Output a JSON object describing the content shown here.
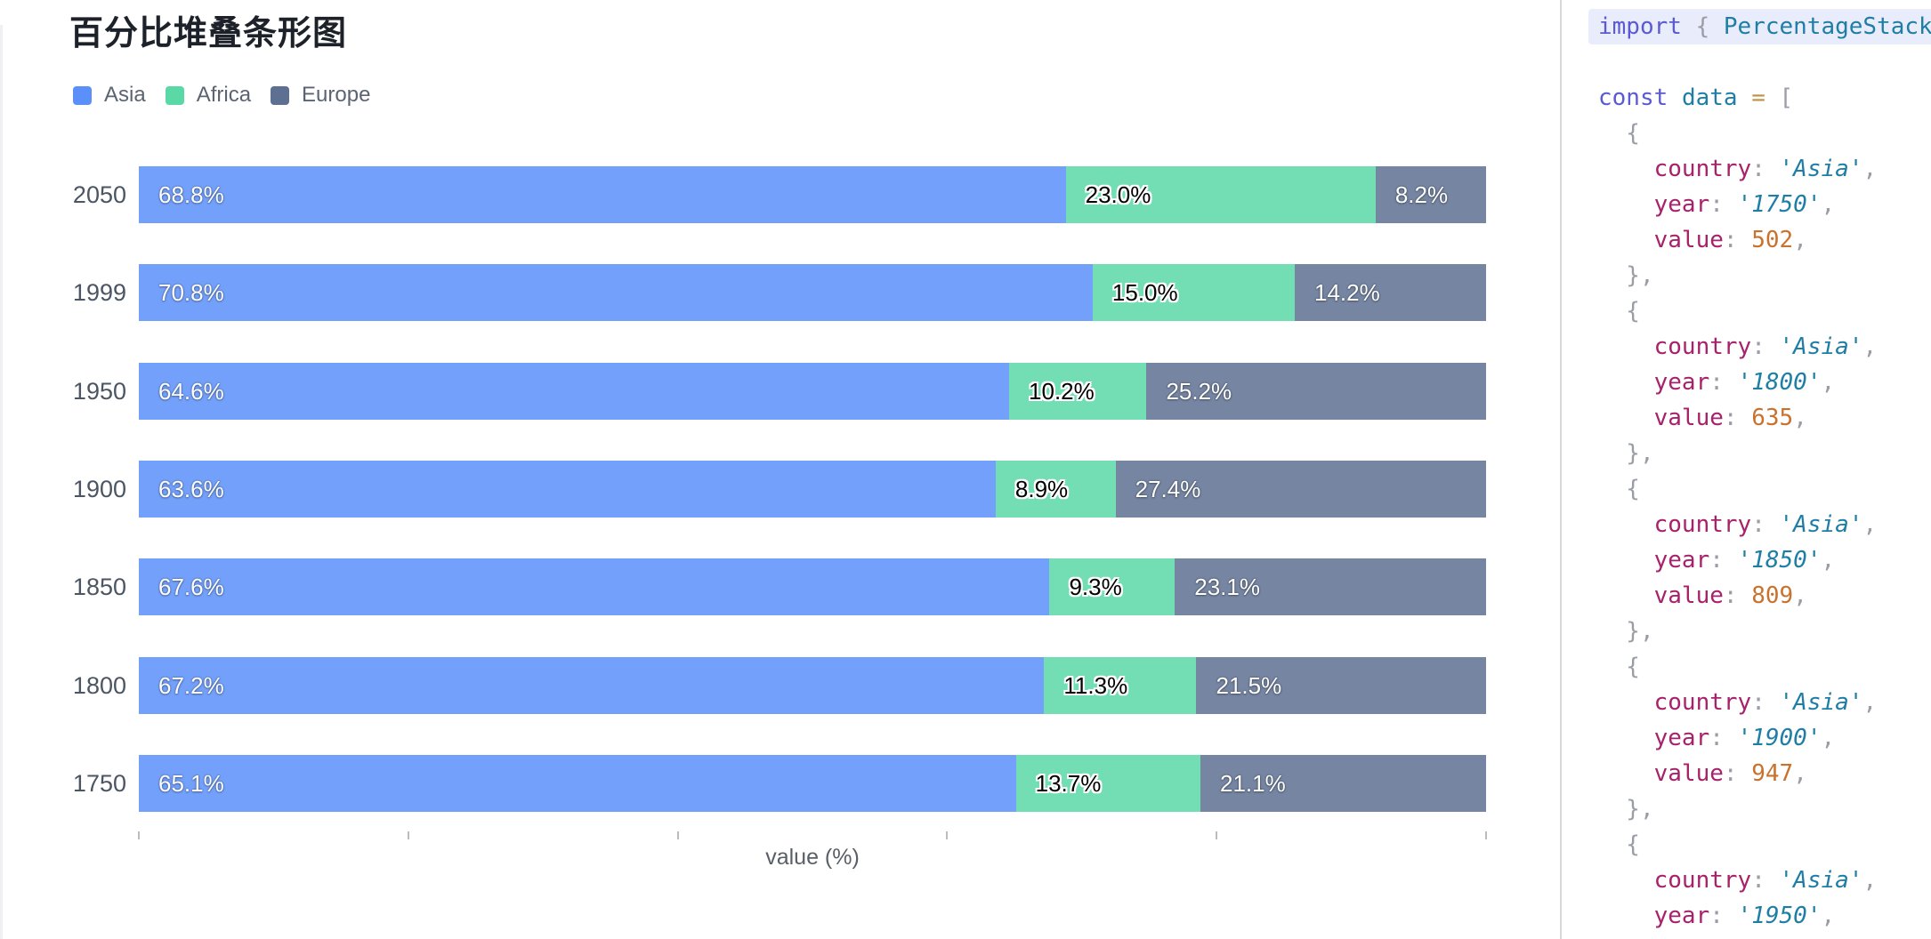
{
  "chart": {
    "title": "百分比堆叠条形图",
    "xlabel": "value (%)",
    "series_meta": [
      {
        "name": "Asia",
        "color": "#5B8FF9",
        "label_style": "light"
      },
      {
        "name": "Africa",
        "color": "#5AD8A6",
        "label_style": "dark"
      },
      {
        "name": "Europe",
        "color": "#5D7092",
        "label_style": "light"
      }
    ],
    "bar_fill_opacity": 0.85
  },
  "chart_data": {
    "type": "bar",
    "orientation": "horizontal",
    "stacked": true,
    "unit": "percent",
    "title": "百分比堆叠条形图",
    "categories": [
      "2050",
      "1999",
      "1950",
      "1900",
      "1850",
      "1800",
      "1750"
    ],
    "series": [
      {
        "name": "Asia",
        "values": [
          68.8,
          70.8,
          64.6,
          63.6,
          67.6,
          67.2,
          65.1
        ]
      },
      {
        "name": "Africa",
        "values": [
          23.0,
          15.0,
          10.2,
          8.9,
          9.3,
          11.3,
          13.7
        ]
      },
      {
        "name": "Europe",
        "values": [
          8.2,
          14.2,
          25.2,
          27.4,
          23.1,
          21.5,
          21.1
        ]
      }
    ],
    "xlabel": "value (%)",
    "xlim": [
      0,
      100
    ],
    "x_ticks_pct": [
      0,
      20,
      40,
      60,
      80,
      100
    ],
    "x_tick_labels_visible": false,
    "legend_position": "top-left",
    "grid": false,
    "colors": {
      "Asia": "#5B8FF9",
      "Africa": "#5AD8A6",
      "Europe": "#5D7092"
    }
  },
  "code_panel": {
    "lines": [
      {
        "hl": true,
        "tokens": [
          {
            "c": "kw",
            "t": "import"
          },
          {
            "c": "pln",
            "t": " "
          },
          {
            "c": "pun",
            "t": "{"
          },
          {
            "c": "pln",
            "t": " "
          },
          {
            "c": "cls",
            "t": "PercentageStack"
          }
        ]
      },
      {
        "hl": false,
        "tokens": []
      },
      {
        "hl": false,
        "tokens": [
          {
            "c": "kw",
            "t": "const"
          },
          {
            "c": "pln",
            "t": " "
          },
          {
            "c": "cls",
            "t": "data"
          },
          {
            "c": "pln",
            "t": " "
          },
          {
            "c": "op",
            "t": "="
          },
          {
            "c": "pln",
            "t": " "
          },
          {
            "c": "pun",
            "t": "["
          }
        ]
      },
      {
        "hl": false,
        "tokens": [
          {
            "c": "pun",
            "t": "  {"
          }
        ]
      },
      {
        "hl": false,
        "tokens": [
          {
            "c": "pln",
            "t": "    "
          },
          {
            "c": "prop",
            "t": "country"
          },
          {
            "c": "pun",
            "t": ":"
          },
          {
            "c": "pln",
            "t": " "
          },
          {
            "c": "str",
            "t": "'Asia'"
          },
          {
            "c": "pun",
            "t": ","
          }
        ]
      },
      {
        "hl": false,
        "tokens": [
          {
            "c": "pln",
            "t": "    "
          },
          {
            "c": "prop",
            "t": "year"
          },
          {
            "c": "pun",
            "t": ":"
          },
          {
            "c": "pln",
            "t": " "
          },
          {
            "c": "str",
            "t": "'1750'"
          },
          {
            "c": "pun",
            "t": ","
          }
        ]
      },
      {
        "hl": false,
        "tokens": [
          {
            "c": "pln",
            "t": "    "
          },
          {
            "c": "prop",
            "t": "value"
          },
          {
            "c": "pun",
            "t": ":"
          },
          {
            "c": "pln",
            "t": " "
          },
          {
            "c": "num",
            "t": "502"
          },
          {
            "c": "pun",
            "t": ","
          }
        ]
      },
      {
        "hl": false,
        "tokens": [
          {
            "c": "pun",
            "t": "  },"
          }
        ]
      },
      {
        "hl": false,
        "tokens": [
          {
            "c": "pun",
            "t": "  {"
          }
        ]
      },
      {
        "hl": false,
        "tokens": [
          {
            "c": "pln",
            "t": "    "
          },
          {
            "c": "prop",
            "t": "country"
          },
          {
            "c": "pun",
            "t": ":"
          },
          {
            "c": "pln",
            "t": " "
          },
          {
            "c": "str",
            "t": "'Asia'"
          },
          {
            "c": "pun",
            "t": ","
          }
        ]
      },
      {
        "hl": false,
        "tokens": [
          {
            "c": "pln",
            "t": "    "
          },
          {
            "c": "prop",
            "t": "year"
          },
          {
            "c": "pun",
            "t": ":"
          },
          {
            "c": "pln",
            "t": " "
          },
          {
            "c": "str",
            "t": "'1800'"
          },
          {
            "c": "pun",
            "t": ","
          }
        ]
      },
      {
        "hl": false,
        "tokens": [
          {
            "c": "pln",
            "t": "    "
          },
          {
            "c": "prop",
            "t": "value"
          },
          {
            "c": "pun",
            "t": ":"
          },
          {
            "c": "pln",
            "t": " "
          },
          {
            "c": "num",
            "t": "635"
          },
          {
            "c": "pun",
            "t": ","
          }
        ]
      },
      {
        "hl": false,
        "tokens": [
          {
            "c": "pun",
            "t": "  },"
          }
        ]
      },
      {
        "hl": false,
        "tokens": [
          {
            "c": "pun",
            "t": "  {"
          }
        ]
      },
      {
        "hl": false,
        "tokens": [
          {
            "c": "pln",
            "t": "    "
          },
          {
            "c": "prop",
            "t": "country"
          },
          {
            "c": "pun",
            "t": ":"
          },
          {
            "c": "pln",
            "t": " "
          },
          {
            "c": "str",
            "t": "'Asia'"
          },
          {
            "c": "pun",
            "t": ","
          }
        ]
      },
      {
        "hl": false,
        "tokens": [
          {
            "c": "pln",
            "t": "    "
          },
          {
            "c": "prop",
            "t": "year"
          },
          {
            "c": "pun",
            "t": ":"
          },
          {
            "c": "pln",
            "t": " "
          },
          {
            "c": "str",
            "t": "'1850'"
          },
          {
            "c": "pun",
            "t": ","
          }
        ]
      },
      {
        "hl": false,
        "tokens": [
          {
            "c": "pln",
            "t": "    "
          },
          {
            "c": "prop",
            "t": "value"
          },
          {
            "c": "pun",
            "t": ":"
          },
          {
            "c": "pln",
            "t": " "
          },
          {
            "c": "num",
            "t": "809"
          },
          {
            "c": "pun",
            "t": ","
          }
        ]
      },
      {
        "hl": false,
        "tokens": [
          {
            "c": "pun",
            "t": "  },"
          }
        ]
      },
      {
        "hl": false,
        "tokens": [
          {
            "c": "pun",
            "t": "  {"
          }
        ]
      },
      {
        "hl": false,
        "tokens": [
          {
            "c": "pln",
            "t": "    "
          },
          {
            "c": "prop",
            "t": "country"
          },
          {
            "c": "pun",
            "t": ":"
          },
          {
            "c": "pln",
            "t": " "
          },
          {
            "c": "str",
            "t": "'Asia'"
          },
          {
            "c": "pun",
            "t": ","
          }
        ]
      },
      {
        "hl": false,
        "tokens": [
          {
            "c": "pln",
            "t": "    "
          },
          {
            "c": "prop",
            "t": "year"
          },
          {
            "c": "pun",
            "t": ":"
          },
          {
            "c": "pln",
            "t": " "
          },
          {
            "c": "str",
            "t": "'1900'"
          },
          {
            "c": "pun",
            "t": ","
          }
        ]
      },
      {
        "hl": false,
        "tokens": [
          {
            "c": "pln",
            "t": "    "
          },
          {
            "c": "prop",
            "t": "value"
          },
          {
            "c": "pun",
            "t": ":"
          },
          {
            "c": "pln",
            "t": " "
          },
          {
            "c": "num",
            "t": "947"
          },
          {
            "c": "pun",
            "t": ","
          }
        ]
      },
      {
        "hl": false,
        "tokens": [
          {
            "c": "pun",
            "t": "  },"
          }
        ]
      },
      {
        "hl": false,
        "tokens": [
          {
            "c": "pun",
            "t": "  {"
          }
        ]
      },
      {
        "hl": false,
        "tokens": [
          {
            "c": "pln",
            "t": "    "
          },
          {
            "c": "prop",
            "t": "country"
          },
          {
            "c": "pun",
            "t": ":"
          },
          {
            "c": "pln",
            "t": " "
          },
          {
            "c": "str",
            "t": "'Asia'"
          },
          {
            "c": "pun",
            "t": ","
          }
        ]
      },
      {
        "hl": false,
        "tokens": [
          {
            "c": "pln",
            "t": "    "
          },
          {
            "c": "prop",
            "t": "year"
          },
          {
            "c": "pun",
            "t": ":"
          },
          {
            "c": "pln",
            "t": " "
          },
          {
            "c": "str",
            "t": "'1950'"
          },
          {
            "c": "pun",
            "t": ","
          }
        ]
      }
    ]
  },
  "layout_colors": {
    "divider": "#d6d8dc",
    "highlight_line_bg": "#e9ecfa",
    "tick": "#b9bcc2"
  }
}
